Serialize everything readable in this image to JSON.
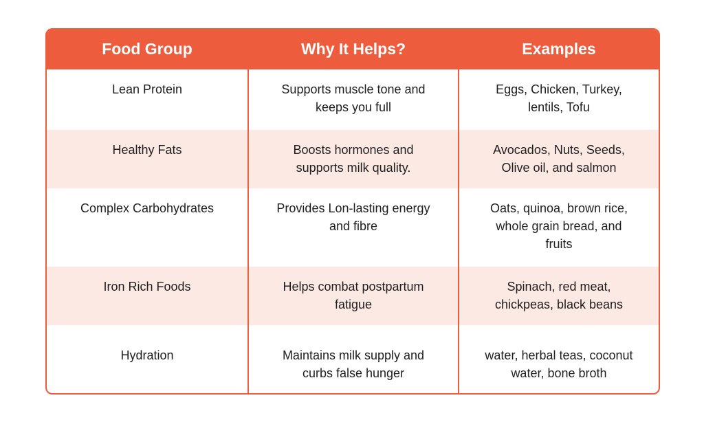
{
  "colors": {
    "header_bg": "#ee5c3e",
    "border": "#ee5c3e",
    "header_text": "#ffffff",
    "shaded_row": "#fde9e4",
    "body_text": "#1e1e1e"
  },
  "table": {
    "headers": [
      "Food Group",
      "Why It Helps?",
      "Examples"
    ],
    "rows": [
      {
        "food_group": "Lean Protein",
        "why": [
          "Supports muscle tone and",
          "keeps you full"
        ],
        "examples": [
          "Eggs, Chicken, Turkey,",
          "lentils, Tofu"
        ]
      },
      {
        "food_group": "Healthy Fats",
        "why": [
          "Boosts hormones and",
          "supports milk quality."
        ],
        "examples": [
          "Avocados, Nuts, Seeds,",
          "Olive oil, and salmon"
        ]
      },
      {
        "food_group": "Complex Carbohydrates",
        "why": [
          "Provides Lon-lasting energy",
          "and fibre"
        ],
        "examples": [
          "Oats, quinoa, brown rice,",
          "whole grain bread, and",
          "fruits"
        ]
      },
      {
        "food_group": "Iron Rich Foods",
        "why": [
          "Helps combat postpartum",
          "fatigue"
        ],
        "examples": [
          "Spinach, red meat,",
          "chickpeas, black beans"
        ]
      },
      {
        "food_group": "Hydration",
        "why": [
          "Maintains milk supply and",
          "curbs false hunger"
        ],
        "examples": [
          "water, herbal teas, coconut",
          "water, bone broth"
        ]
      }
    ]
  }
}
